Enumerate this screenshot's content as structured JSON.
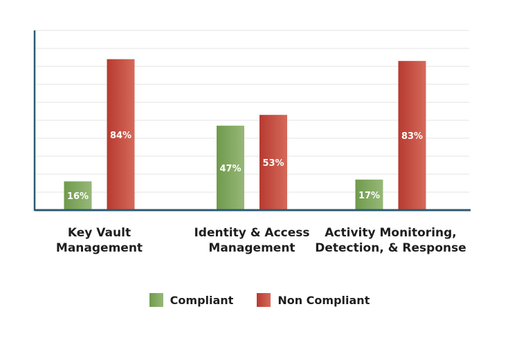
{
  "chart_data": {
    "type": "bar",
    "categories": [
      [
        "Key Vault",
        "Management"
      ],
      [
        "Identity & Access",
        "Management"
      ],
      [
        "Activity Monitoring,",
        "Detection, & Response"
      ]
    ],
    "series": [
      {
        "name": "Compliant",
        "values": [
          16,
          47,
          17
        ],
        "labels": [
          "16%",
          "47%",
          "17%"
        ],
        "color": "#7ea45a"
      },
      {
        "name": "Non Compliant",
        "values": [
          84,
          53,
          83
        ],
        "labels": [
          "84%",
          "53%",
          "83%"
        ],
        "color": "#c0463a"
      }
    ],
    "ylim": [
      0,
      100
    ],
    "grid": true,
    "axis_color": "#2a5a70",
    "legend_position": "bottom-center"
  }
}
